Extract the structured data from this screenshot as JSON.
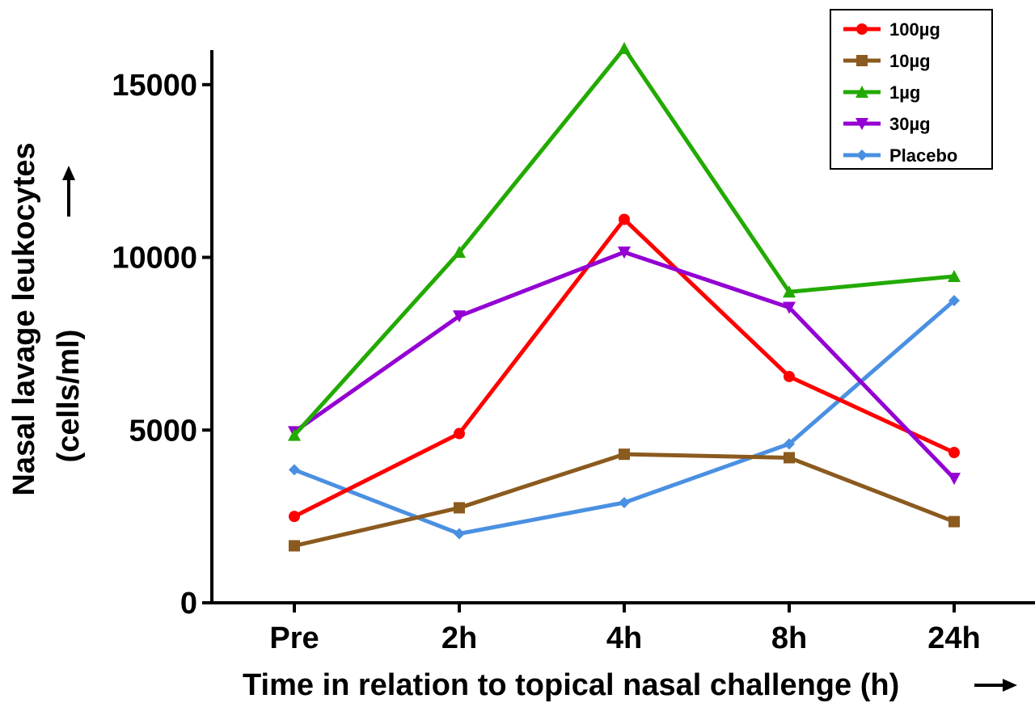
{
  "chart_data": {
    "type": "line",
    "categories": [
      "Pre",
      "2h",
      "4h",
      "8h",
      "24h"
    ],
    "xlabel": "Time in relation to topical nasal challenge (h)",
    "xlabel_arrow": "→",
    "ylabel_line1": "Nasal  lavage leukocytes",
    "ylabel_line2": "(cells/ml)",
    "ylabel_arrow": "→",
    "ylim": [
      0,
      16000
    ],
    "yticks": [
      0,
      5000,
      10000,
      15000
    ],
    "ytick_labels": [
      "0",
      "5000",
      "10000",
      "15000"
    ],
    "grid": false,
    "legend_position": "top-right",
    "series": [
      {
        "name": "100µg",
        "color": "#ff0000",
        "marker": "circle",
        "values": [
          2500,
          4900,
          11100,
          6550,
          4350
        ]
      },
      {
        "name": "10µg",
        "color": "#8b5a1e",
        "marker": "square",
        "values": [
          1650,
          2750,
          4300,
          4200,
          2350
        ]
      },
      {
        "name": "1µg",
        "color": "#22aa00",
        "marker": "triangle-up",
        "values": [
          4850,
          10150,
          16050,
          9000,
          9450
        ]
      },
      {
        "name": "30µg",
        "color": "#9400d3",
        "marker": "triangle-down",
        "values": [
          4950,
          8300,
          10150,
          8550,
          3600
        ]
      },
      {
        "name": "Placebo",
        "color": "#4a90e2",
        "marker": "diamond",
        "values": [
          3850,
          2000,
          2900,
          4600,
          8750
        ]
      }
    ]
  }
}
